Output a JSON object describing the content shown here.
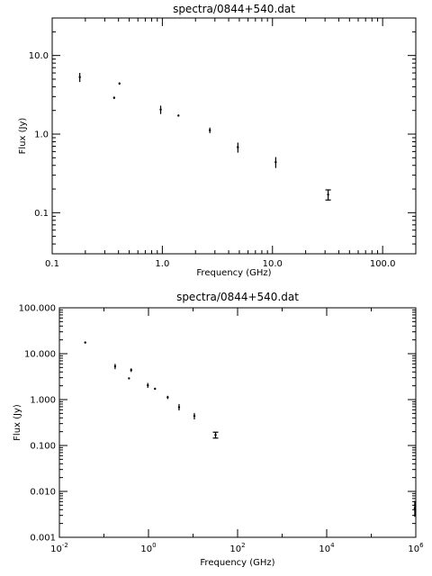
{
  "chart_data": [
    {
      "type": "scatter",
      "title": "spectra/0844+540.dat",
      "xlabel": "Frequency (GHz)",
      "ylabel": "Flux (Jy)",
      "xscale": "log",
      "yscale": "log",
      "xlim": [
        0.1,
        200
      ],
      "ylim": [
        0.03,
        30
      ],
      "grid": false,
      "legend": "none",
      "x_ticks": [
        0.1,
        1,
        10,
        100
      ],
      "x_tick_labels": [
        "0.1",
        "1.0",
        "10.0",
        "100.0"
      ],
      "y_ticks": [
        0.1,
        1,
        10
      ],
      "y_tick_labels": [
        "0.1",
        "1.0",
        "10.0"
      ],
      "points": [
        {
          "x": 0.178,
          "y": 5.3,
          "ylo": 4.6,
          "yhi": 6.0
        },
        {
          "x": 0.365,
          "y": 2.9,
          "ylo": 2.8,
          "yhi": 3.0
        },
        {
          "x": 0.408,
          "y": 4.4,
          "ylo": 4.25,
          "yhi": 4.55
        },
        {
          "x": 0.966,
          "y": 2.05,
          "ylo": 1.8,
          "yhi": 2.3
        },
        {
          "x": 1.4,
          "y": 1.72,
          "ylo": 1.67,
          "yhi": 1.77
        },
        {
          "x": 2.7,
          "y": 1.12,
          "ylo": 1.03,
          "yhi": 1.21
        },
        {
          "x": 4.85,
          "y": 0.68,
          "ylo": 0.58,
          "yhi": 0.78
        },
        {
          "x": 10.7,
          "y": 0.44,
          "ylo": 0.37,
          "yhi": 0.51
        },
        {
          "x": 32.0,
          "y": 0.17,
          "ylo": 0.145,
          "yhi": 0.195,
          "capped": true
        }
      ]
    },
    {
      "type": "scatter",
      "title": "spectra/0844+540.dat",
      "xlabel": "Frequency (GHz)",
      "ylabel": "Flux (Jy)",
      "xscale": "log",
      "yscale": "log",
      "xlim": [
        0.01,
        1000000
      ],
      "ylim": [
        0.001,
        100
      ],
      "grid": false,
      "legend": "none",
      "x_ticks": [
        0.01,
        1,
        100,
        10000,
        1000000
      ],
      "x_tick_labels": [
        {
          "base": "10",
          "exp": "-2"
        },
        {
          "base": "10",
          "exp": "0"
        },
        {
          "base": "10",
          "exp": "2"
        },
        {
          "base": "10",
          "exp": "4"
        },
        {
          "base": "10",
          "exp": "6"
        }
      ],
      "y_ticks": [
        0.001,
        0.01,
        0.1,
        1,
        10,
        100
      ],
      "y_tick_labels": [
        "0.001",
        "0.010",
        "0.100",
        "1.000",
        "10.000",
        "100.000"
      ],
      "points": [
        {
          "x": 0.038,
          "y": 17.5,
          "ylo": 16.8,
          "yhi": 18.2
        },
        {
          "x": 0.178,
          "y": 5.3,
          "ylo": 4.6,
          "yhi": 6.0
        },
        {
          "x": 0.365,
          "y": 2.9,
          "ylo": 2.8,
          "yhi": 3.0
        },
        {
          "x": 0.408,
          "y": 4.4,
          "ylo": 4.0,
          "yhi": 4.8
        },
        {
          "x": 0.966,
          "y": 2.05,
          "ylo": 1.8,
          "yhi": 2.3
        },
        {
          "x": 1.4,
          "y": 1.72,
          "ylo": 1.67,
          "yhi": 1.77
        },
        {
          "x": 2.7,
          "y": 1.12,
          "ylo": 1.03,
          "yhi": 1.21
        },
        {
          "x": 4.85,
          "y": 0.68,
          "ylo": 0.58,
          "yhi": 0.8
        },
        {
          "x": 10.7,
          "y": 0.44,
          "ylo": 0.37,
          "yhi": 0.51
        },
        {
          "x": 32.0,
          "y": 0.17,
          "ylo": 0.145,
          "yhi": 0.195,
          "capped": true
        },
        {
          "x": 950000,
          "y": 0.0043,
          "ylo": 0.0028,
          "yhi": 0.0062
        }
      ]
    }
  ]
}
